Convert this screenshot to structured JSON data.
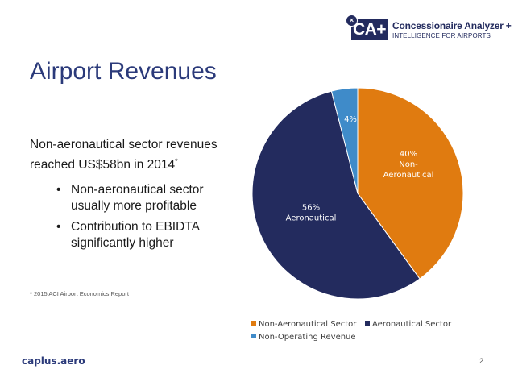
{
  "logo": {
    "mark": "CA+",
    "name": "Concessionaire Analyzer +",
    "tagline": "INTELLIGENCE FOR AIRPORTS",
    "close_icon": "close-icon",
    "brand_color": "#232b5e"
  },
  "slide": {
    "title": "Airport Revenues",
    "lead": "Non-aeronautical sector revenues reached US$58bn in 2014",
    "lead_mark": "*",
    "bullets": [
      "Non-aeronautical sector usually more profitable",
      "Contribution to EBIDTA significantly higher"
    ],
    "footnote": "* 2015 ACI Airport Economics Report",
    "footer_url": "caplus.aero",
    "page_number": "2"
  },
  "chart_data": {
    "type": "pie",
    "title": "",
    "slices": [
      {
        "name": "Non-Aeronautical Sector",
        "value": 40,
        "label_lines": [
          "40%",
          "Non-",
          "Aeronautical"
        ],
        "color": "#e07b10"
      },
      {
        "name": "Aeronautical Sector",
        "value": 56,
        "label_lines": [
          "56%",
          "Aeronautical"
        ],
        "color": "#232b5e"
      },
      {
        "name": "Non-Operating Revenue",
        "value": 4,
        "label_lines": [
          "4%"
        ],
        "color": "#3f8bc9"
      }
    ],
    "legend": [
      "Non-Aeronautical Sector",
      "Aeronautical Sector",
      "Non-Operating Revenue"
    ],
    "legend_position": "bottom"
  }
}
